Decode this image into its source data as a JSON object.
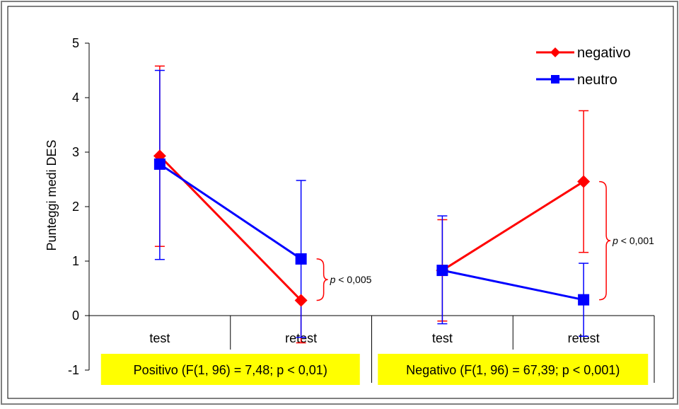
{
  "chart_data": {
    "type": "line",
    "ylabel": "Punteggi medi DES",
    "ylim": [
      -1,
      5
    ],
    "yticks": [
      -1,
      0,
      1,
      2,
      3,
      4,
      5
    ],
    "categories": [
      "test",
      "retest",
      "test",
      "retest"
    ],
    "groups": [
      {
        "label": "Positivo  (F(1, 96) = 7,48; p < 0,01)",
        "color": "#ffff00"
      },
      {
        "label": "Negativo (F(1, 96) = 67,39; p < 0,001)",
        "color": "#ffff00"
      }
    ],
    "series": [
      {
        "name": "negativo",
        "color": "#ff0000",
        "marker": "diamond",
        "segments": [
          [
            {
              "x": 0,
              "y": 2.93,
              "low": 1.27,
              "high": 4.58
            },
            {
              "x": 1,
              "y": 0.28,
              "low": -0.5,
              "high": 0.28
            }
          ],
          [
            {
              "x": 2,
              "y": 0.83,
              "low": -0.1,
              "high": 1.76
            },
            {
              "x": 3,
              "y": 2.46,
              "low": 1.16,
              "high": 3.76
            }
          ]
        ]
      },
      {
        "name": "neutro",
        "color": "#0000ff",
        "marker": "square",
        "segments": [
          [
            {
              "x": 0,
              "y": 2.78,
              "low": 1.03,
              "high": 4.5
            },
            {
              "x": 1,
              "y": 1.04,
              "low": -0.4,
              "high": 2.48
            }
          ],
          [
            {
              "x": 2,
              "y": 0.83,
              "low": -0.15,
              "high": 1.83
            },
            {
              "x": 3,
              "y": 0.29,
              "low": -0.38,
              "high": 0.96
            }
          ]
        ]
      }
    ],
    "annotations": [
      {
        "p_label": "p",
        "text": " < 0,005",
        "x": 1,
        "y_from": 0.28,
        "y_to": 1.04
      },
      {
        "p_label": "p",
        "text": " < 0,001",
        "x": 3,
        "y_from": 0.29,
        "y_to": 2.46
      }
    ],
    "legend_position": "top-right",
    "grid": false
  }
}
